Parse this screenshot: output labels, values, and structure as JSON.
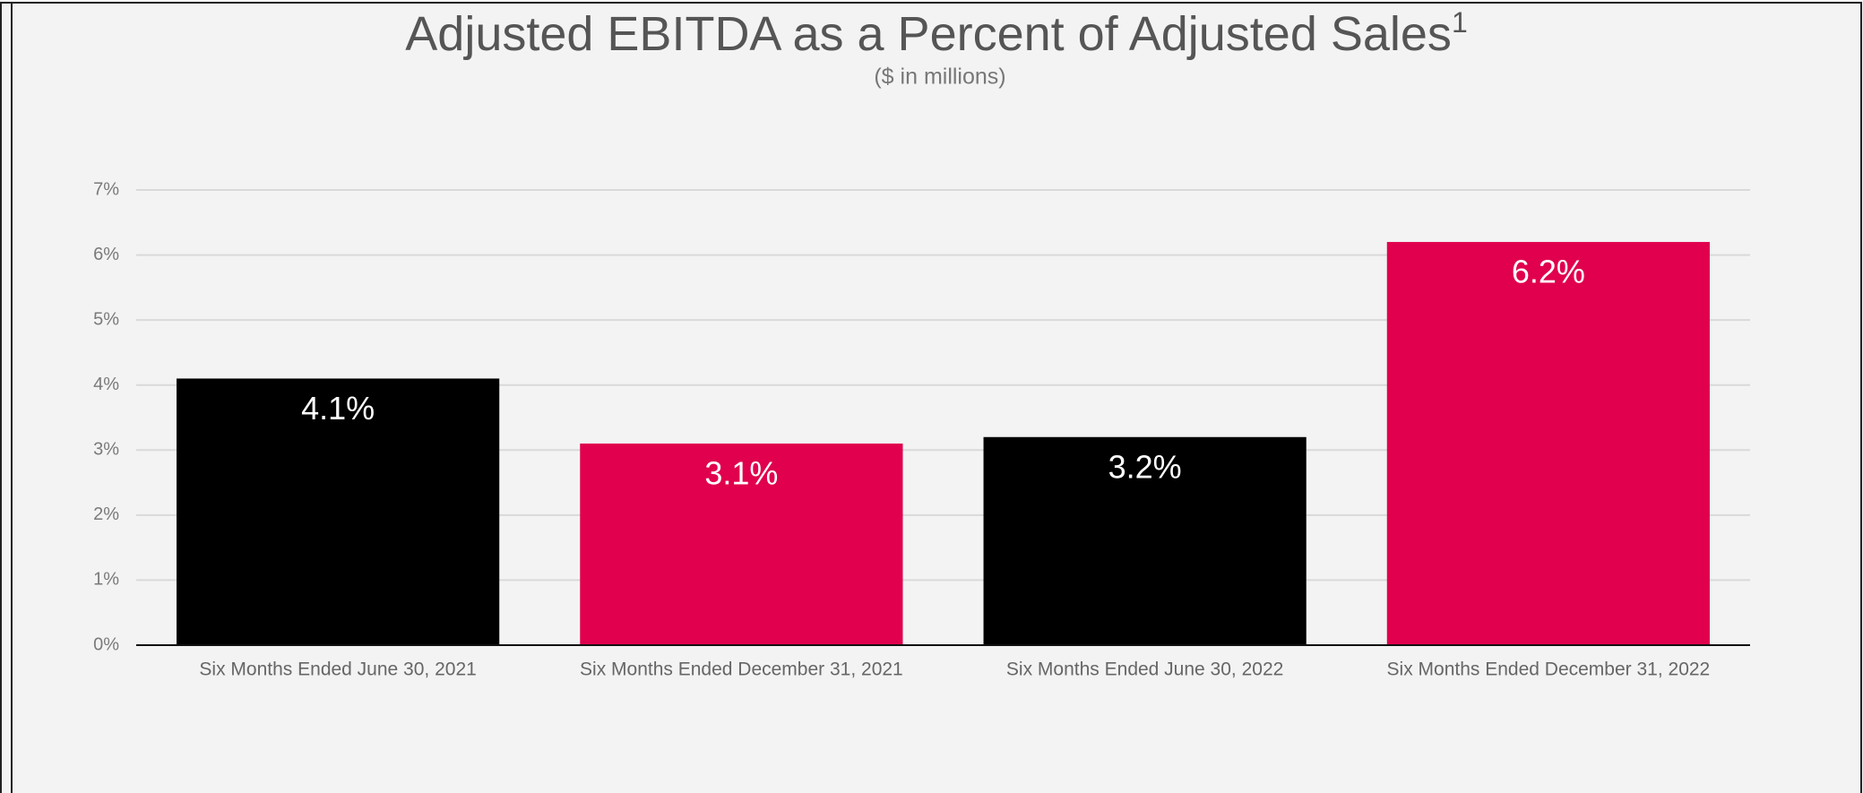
{
  "chart_data": {
    "type": "bar",
    "title": "Adjusted EBITDA as a Percent of Adjusted Sales",
    "title_superscript": "1",
    "subtitle": "($ in millions)",
    "categories": [
      "Six Months Ended June 30, 2021",
      "Six Months Ended December 31, 2021",
      "Six Months Ended June 30, 2022",
      "Six Months Ended December 31, 2022"
    ],
    "values": [
      4.1,
      3.1,
      3.2,
      6.2
    ],
    "value_labels": [
      "4.1%",
      "3.1%",
      "3.2%",
      "6.2%"
    ],
    "colors": [
      "#000000",
      "#e0004d",
      "#000000",
      "#e0004d"
    ],
    "ylim": [
      0,
      7
    ],
    "yticks": [
      {
        "value": 0,
        "label": "0%"
      },
      {
        "value": 1,
        "label": "1%"
      },
      {
        "value": 2,
        "label": "2%"
      },
      {
        "value": 3,
        "label": "3%"
      },
      {
        "value": 4,
        "label": "4%"
      },
      {
        "value": 5,
        "label": "5%"
      },
      {
        "value": 6,
        "label": "6%"
      },
      {
        "value": 7,
        "label": "7%"
      }
    ],
    "grid": true
  }
}
